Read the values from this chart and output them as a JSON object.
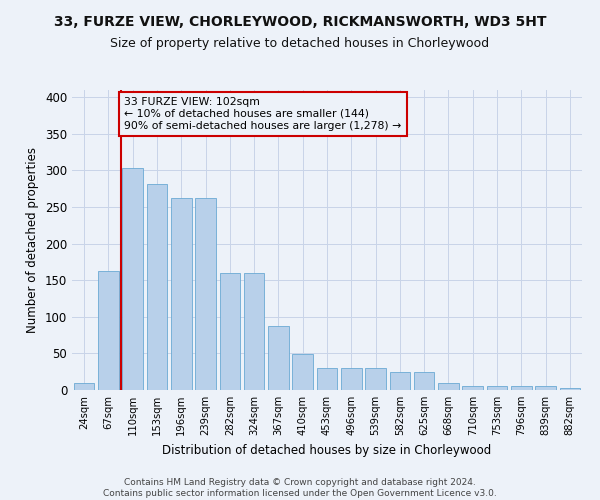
{
  "title": "33, FURZE VIEW, CHORLEYWOOD, RICKMANSWORTH, WD3 5HT",
  "subtitle": "Size of property relative to detached houses in Chorleywood",
  "xlabel": "Distribution of detached houses by size in Chorleywood",
  "ylabel": "Number of detached properties",
  "categories": [
    "24sqm",
    "67sqm",
    "110sqm",
    "153sqm",
    "196sqm",
    "239sqm",
    "282sqm",
    "324sqm",
    "367sqm",
    "410sqm",
    "453sqm",
    "496sqm",
    "539sqm",
    "582sqm",
    "625sqm",
    "668sqm",
    "710sqm",
    "753sqm",
    "796sqm",
    "839sqm",
    "882sqm"
  ],
  "values": [
    10,
    163,
    304,
    281,
    263,
    263,
    160,
    160,
    88,
    49,
    30,
    30,
    30,
    25,
    25,
    9,
    6,
    5,
    5,
    5,
    3
  ],
  "bar_color": "#b8d0ea",
  "bar_edge_color": "#6aaad4",
  "vline_x": 1.5,
  "vline_color": "#cc0000",
  "annotation_box_text": "33 FURZE VIEW: 102sqm\n← 10% of detached houses are smaller (144)\n90% of semi-detached houses are larger (1,278) →",
  "annotation_box_color": "#cc0000",
  "grid_color": "#c8d4e8",
  "ylim": [
    0,
    410
  ],
  "yticks": [
    0,
    50,
    100,
    150,
    200,
    250,
    300,
    350,
    400
  ],
  "footer": "Contains HM Land Registry data © Crown copyright and database right 2024.\nContains public sector information licensed under the Open Government Licence v3.0.",
  "bg_color": "#edf2f9",
  "title_fontsize": 10,
  "subtitle_fontsize": 9
}
